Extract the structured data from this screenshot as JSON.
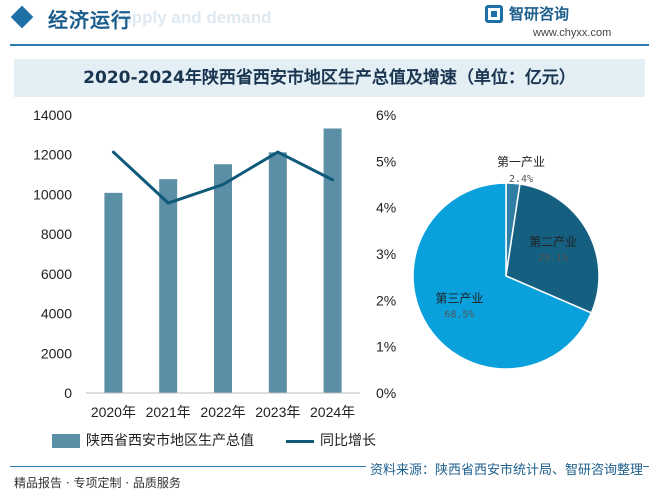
{
  "header": {
    "title": "经济运行",
    "ghost_text": "Supply and demand",
    "brand_name": "智研咨询",
    "brand_url": "www.chyxx.com"
  },
  "colors": {
    "bar": "#5b8fa6",
    "line": "#0f5a78",
    "pie_primary": "#2e7fa3",
    "pie_secondary": "#155f80",
    "pie_tertiary": "#0aa0dc",
    "accent": "#1d6fa5"
  },
  "chart_data": [
    {
      "type": "bar",
      "title": "2020-2024年陕西省西安市地区生产总值及增速（单位：亿元）",
      "categories": [
        "2020年",
        "2021年",
        "2022年",
        "2023年",
        "2024年"
      ],
      "series": [
        {
          "name": "陕西省西安市地区生产总值",
          "type": "bar",
          "axis": "left",
          "values": [
            10080,
            10770,
            11520,
            12120,
            13320
          ]
        },
        {
          "name": "同比增长",
          "type": "line",
          "axis": "right",
          "values": [
            5.2,
            4.1,
            4.5,
            5.2,
            4.6
          ]
        }
      ],
      "y_left": {
        "ylim": [
          0,
          14000
        ],
        "ticks": [
          "0",
          "2000",
          "4000",
          "6000",
          "8000",
          "10000",
          "12000",
          "14000"
        ]
      },
      "y_right": {
        "ylim": [
          0,
          6
        ],
        "ticks": [
          "0%",
          "1%",
          "2%",
          "3%",
          "4%",
          "5%",
          "6%"
        ]
      },
      "legend_position": "bottom-left",
      "grid": false
    },
    {
      "type": "pie",
      "slices": [
        {
          "label": "第一产业",
          "value": 2.4,
          "value_label": "2.4%"
        },
        {
          "label": "第二产业",
          "value": 29.1,
          "value_label": "29.1%"
        },
        {
          "label": "第三产业",
          "value": 68.5,
          "value_label": "68.5%"
        }
      ]
    }
  ],
  "footer": {
    "left_text": "精品报告 · 专项定制 · 品质服务",
    "source_text": "资料来源：陕西省西安市统计局、智研咨询整理"
  }
}
